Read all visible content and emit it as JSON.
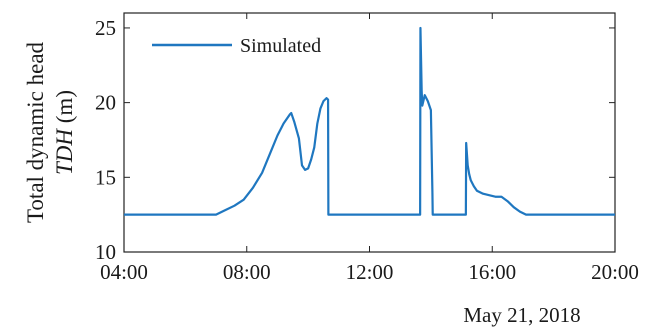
{
  "chart_data": {
    "type": "line",
    "title": "",
    "ylabel_line1": "Total dynamic head",
    "ylabel_line2_var": "TDH",
    "ylabel_line2_unit": "(m)",
    "date_label": "May 21, 2018",
    "xlim_hours": [
      4,
      20
    ],
    "ylim": [
      10,
      26
    ],
    "x_ticks": [
      4,
      8,
      12,
      16,
      20
    ],
    "x_tick_labels": [
      "04:00",
      "08:00",
      "12:00",
      "16:00",
      "20:00"
    ],
    "y_ticks": [
      10,
      15,
      20,
      25
    ],
    "y_tick_labels": [
      "10",
      "15",
      "20",
      "25"
    ],
    "grid": false,
    "legend_position": "top-left",
    "series": [
      {
        "name": "Simulated",
        "color": "#1f77c0",
        "x_hours": [
          4.0,
          7.0,
          7.3,
          7.6,
          7.9,
          8.2,
          8.5,
          8.8,
          9.0,
          9.2,
          9.4,
          9.45,
          9.55,
          9.7,
          9.8,
          9.9,
          10.0,
          10.1,
          10.2,
          10.3,
          10.4,
          10.5,
          10.6,
          10.65,
          10.66,
          13.65,
          13.66,
          13.7,
          13.72,
          13.8,
          13.9,
          14.0,
          14.05,
          14.06,
          15.14,
          15.15,
          15.2,
          15.25,
          15.3,
          15.4,
          15.5,
          15.7,
          15.9,
          16.1,
          16.3,
          16.5,
          16.7,
          16.9,
          17.1,
          20.0
        ],
        "values": [
          12.5,
          12.5,
          12.8,
          13.1,
          13.5,
          14.3,
          15.3,
          16.8,
          17.8,
          18.6,
          19.2,
          19.3,
          18.7,
          17.6,
          15.8,
          15.5,
          15.6,
          16.2,
          17.0,
          18.6,
          19.6,
          20.1,
          20.3,
          20.2,
          12.5,
          12.5,
          25.0,
          20.8,
          19.8,
          20.5,
          20.1,
          19.5,
          14.0,
          12.5,
          12.5,
          17.3,
          15.8,
          15.2,
          14.8,
          14.4,
          14.1,
          13.9,
          13.8,
          13.7,
          13.7,
          13.4,
          13.0,
          12.7,
          12.5,
          12.5
        ]
      }
    ]
  }
}
